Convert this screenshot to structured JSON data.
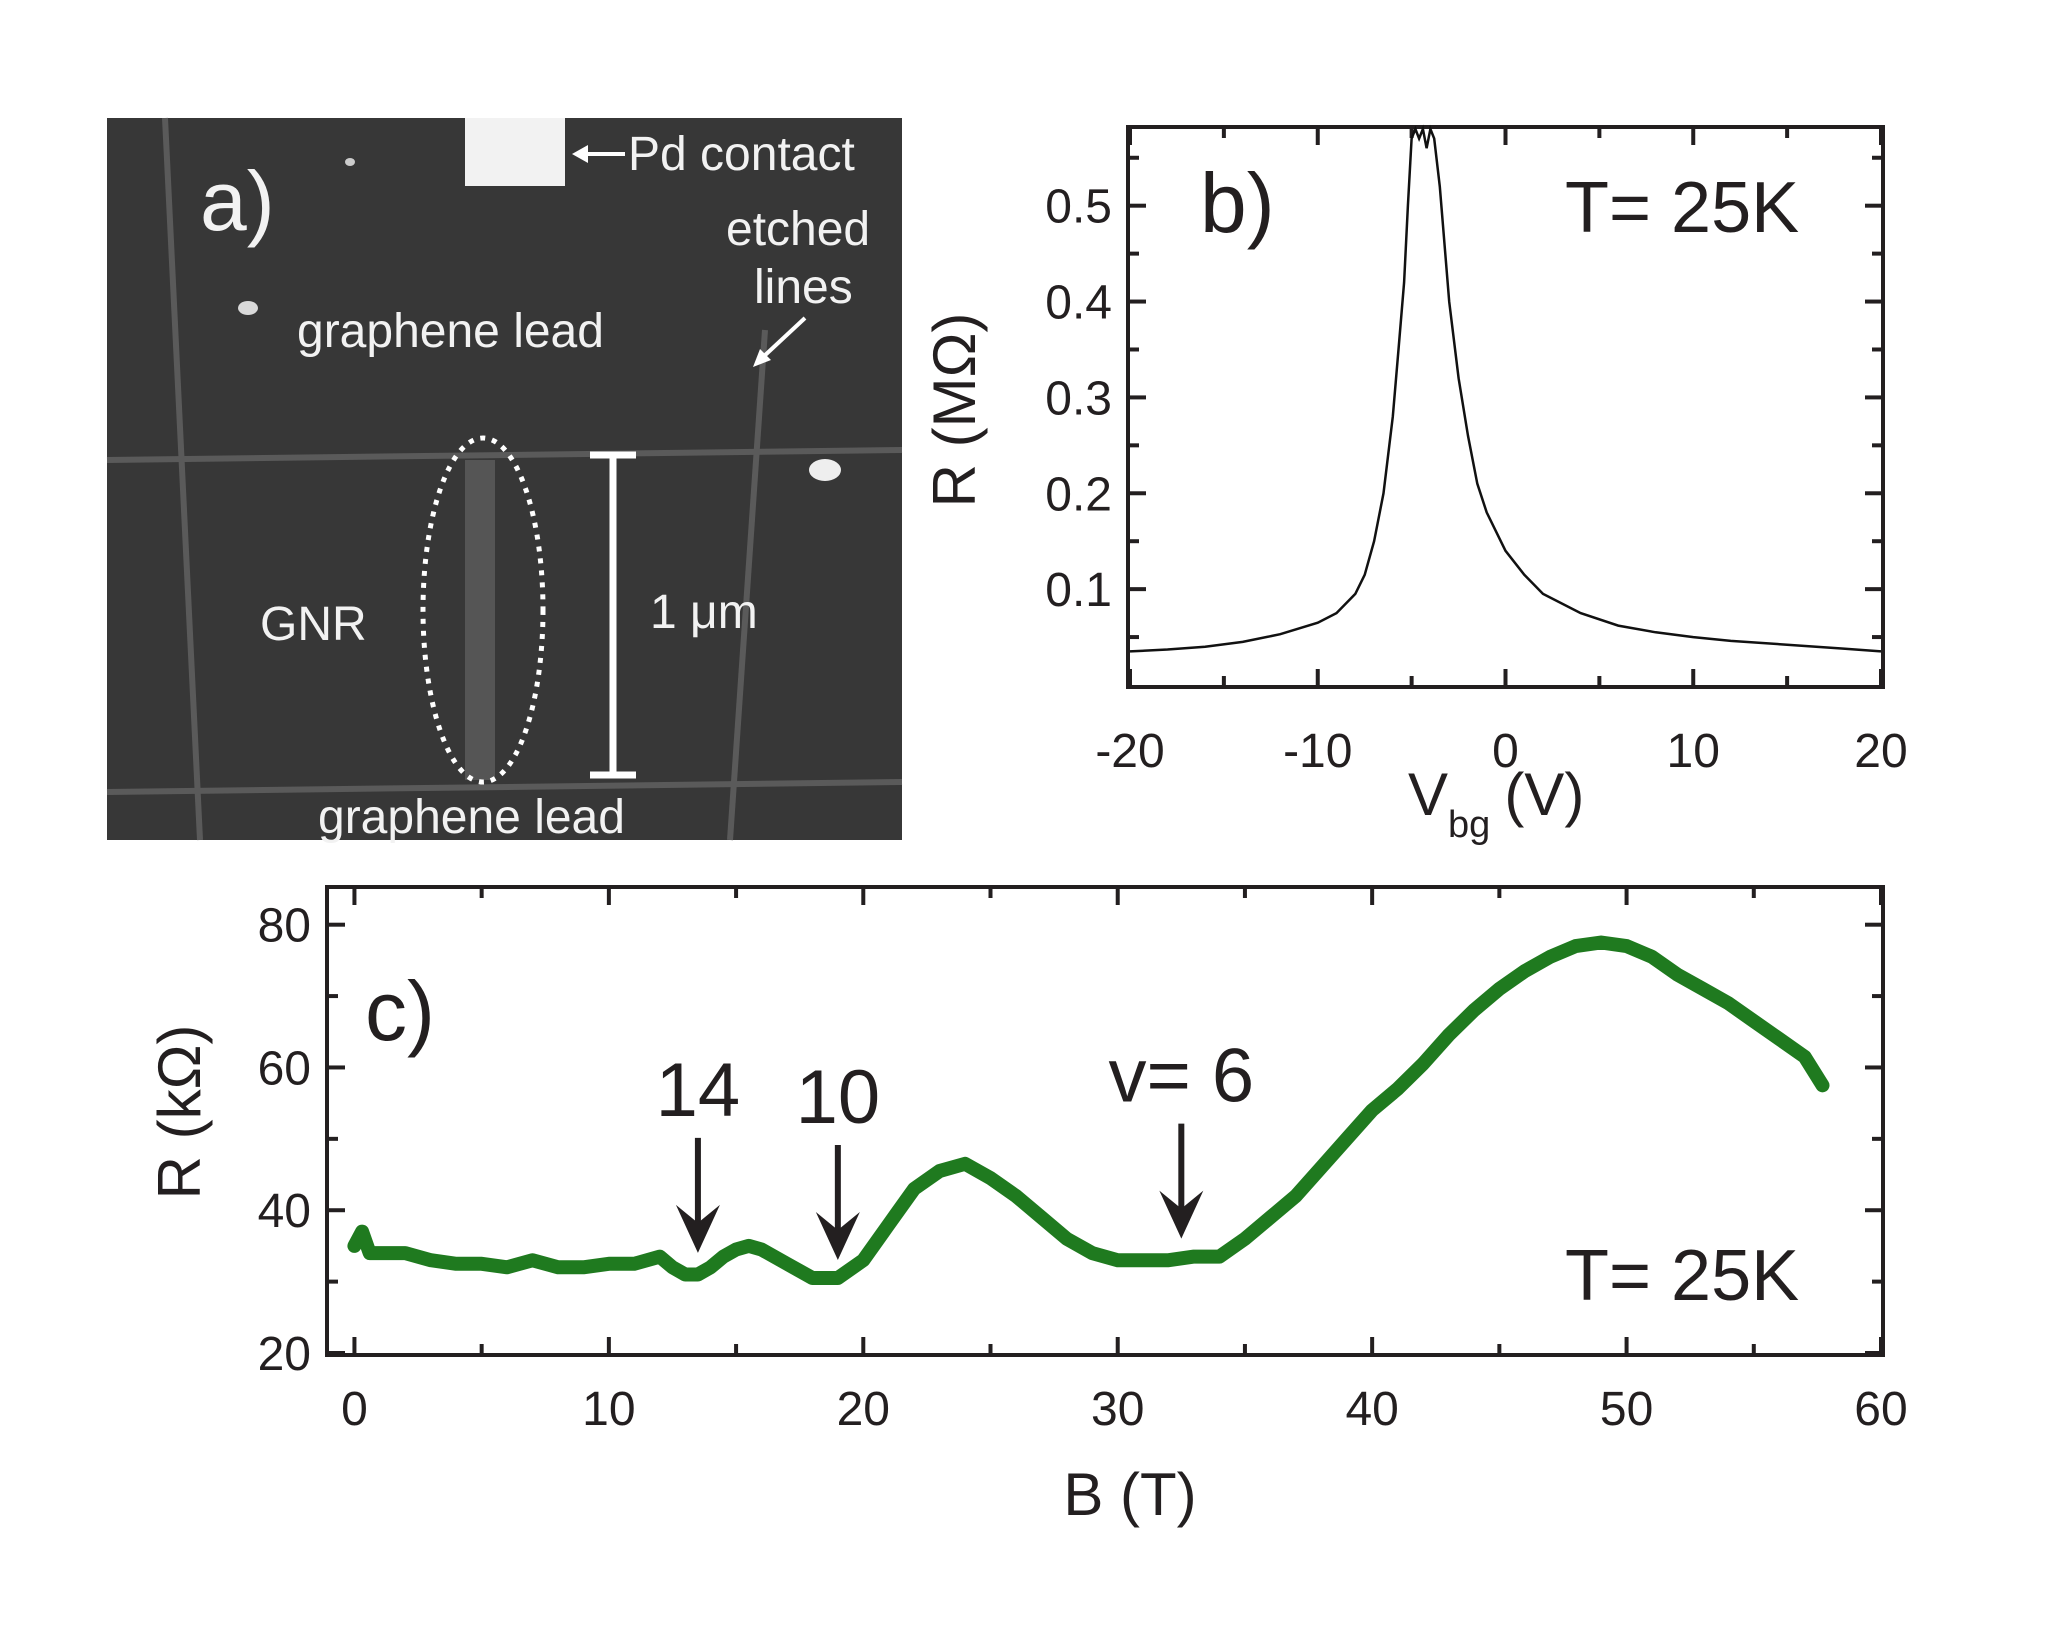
{
  "panel_a": {
    "label": "a)",
    "pd_contact": "Pd contact",
    "etched_lines_1": "etched",
    "etched_lines_2": "lines",
    "lead_top": "graphene lead",
    "lead_bottom": "graphene lead",
    "gnr": "GNR",
    "scale": "1 μm"
  },
  "chart_data": [
    {
      "type": "line",
      "panel": "b)",
      "annotation": "T= 25K",
      "xlabel": "V",
      "xlabel_sub": "bg",
      "xlabel_unit": "(V)",
      "ylabel": "R (MΩ)",
      "xlim": [
        -20,
        20
      ],
      "ylim": [
        0.0,
        0.58
      ],
      "xticks": [
        -20,
        -10,
        0,
        10,
        20
      ],
      "xtick_labels": [
        "-20",
        "-10",
        "0",
        "10",
        "20"
      ],
      "yticks": [
        0.1,
        0.2,
        0.3,
        0.4,
        0.5
      ],
      "ytick_labels": [
        "0.1",
        "0.2",
        "0.3",
        "0.4",
        "0.5"
      ],
      "color": "#111111",
      "series": [
        {
          "x": [
            -20,
            -18,
            -16,
            -14,
            -12,
            -10,
            -9,
            -8,
            -7.5,
            -7,
            -6.5,
            -6,
            -5.7,
            -5.4,
            -5.2,
            -5.0,
            -4.8,
            -4.6,
            -4.4,
            -4.2,
            -4.0,
            -3.8,
            -3.5,
            -3,
            -2.5,
            -2,
            -1.5,
            -1,
            0,
            1,
            2,
            4,
            6,
            8,
            10,
            12,
            15,
            18,
            20
          ],
          "y": [
            0.035,
            0.037,
            0.04,
            0.045,
            0.053,
            0.065,
            0.075,
            0.095,
            0.115,
            0.15,
            0.2,
            0.28,
            0.35,
            0.42,
            0.5,
            0.57,
            0.58,
            0.57,
            0.58,
            0.56,
            0.58,
            0.57,
            0.52,
            0.4,
            0.32,
            0.26,
            0.21,
            0.18,
            0.14,
            0.115,
            0.095,
            0.075,
            0.062,
            0.055,
            0.05,
            0.046,
            0.042,
            0.038,
            0.035
          ]
        }
      ]
    },
    {
      "type": "line",
      "panel": "c)",
      "annotation": "T= 25K",
      "xlabel": "B (T)",
      "ylabel": "R (kΩ)",
      "xlim": [
        -1,
        60
      ],
      "ylim": [
        20,
        85
      ],
      "xticks": [
        0,
        10,
        20,
        30,
        40,
        50,
        60
      ],
      "xtick_labels": [
        "0",
        "10",
        "20",
        "30",
        "40",
        "50",
        "60"
      ],
      "yticks": [
        20,
        40,
        60,
        80
      ],
      "ytick_labels": [
        "20",
        "40",
        "60",
        "80"
      ],
      "color": "#1f7a1f",
      "arrows": [
        {
          "label": "14",
          "x": 13.5,
          "y": 31.5
        },
        {
          "label": "10",
          "x": 19.0,
          "y": 30.5
        },
        {
          "label": "v= 6",
          "x": 32.5,
          "y": 33.5
        }
      ],
      "series": [
        {
          "x": [
            0,
            0.3,
            0.6,
            1,
            2,
            3,
            4,
            5,
            6,
            7,
            8,
            9,
            10,
            11,
            12,
            12.5,
            13,
            13.5,
            14,
            14.5,
            15,
            15.5,
            16,
            17,
            18,
            19,
            20,
            21,
            22,
            23,
            24,
            25,
            26,
            27,
            28,
            29,
            30,
            31,
            32,
            33,
            34,
            35,
            36,
            37,
            38,
            39,
            40,
            41,
            42,
            43,
            44,
            45,
            46,
            47,
            48,
            49,
            50,
            51,
            52,
            53,
            54,
            55,
            56,
            57,
            57.7
          ],
          "y": [
            35,
            37,
            34,
            34,
            34,
            33,
            32.5,
            32.5,
            32,
            33,
            32,
            32,
            32.5,
            32.5,
            33.5,
            32,
            31,
            31,
            32,
            33.5,
            34.5,
            35,
            34.5,
            32.5,
            30.5,
            30.5,
            33,
            38,
            43,
            45.5,
            46.5,
            44.5,
            42,
            39,
            36,
            34,
            33,
            33,
            33,
            33.5,
            33.5,
            36,
            39,
            42,
            46,
            50,
            54,
            57,
            60.5,
            64.5,
            68,
            71,
            73.5,
            75.5,
            77,
            77.5,
            77,
            75.5,
            73,
            71,
            69,
            66.5,
            64,
            61.5,
            57.5
          ]
        }
      ]
    }
  ]
}
